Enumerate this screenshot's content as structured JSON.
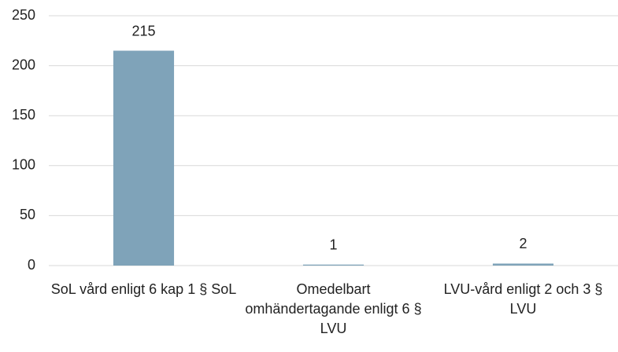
{
  "chart_data": {
    "type": "bar",
    "categories": [
      "SoL vård enligt 6 kap 1 § SoL",
      "Omedelbart omhändertagande enligt 6 § LVU",
      "LVU-vård enligt 2 och 3 § LVU"
    ],
    "values": [
      215,
      1,
      2
    ],
    "color": "#7fa3b9",
    "ylim": [
      0,
      250
    ],
    "yticks": [
      0,
      50,
      100,
      150,
      200,
      250
    ],
    "grid": true,
    "data_labels": true
  }
}
